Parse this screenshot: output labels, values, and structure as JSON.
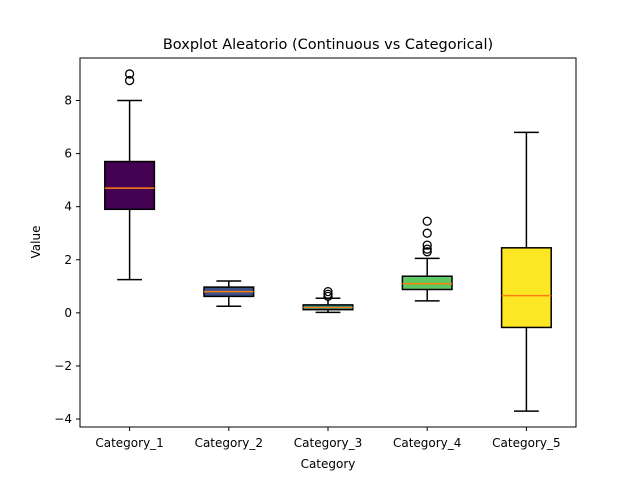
{
  "chart_data": {
    "type": "boxplot",
    "title": "Boxplot Aleatorio (Continuous vs Categorical)",
    "xlabel": "Category",
    "ylabel": "Value",
    "ylim": [
      -4.3,
      9.6
    ],
    "yticks": [
      -4,
      -2,
      0,
      2,
      4,
      6,
      8
    ],
    "ytick_labels": [
      "−4",
      "−2",
      "0",
      "2",
      "4",
      "6",
      "8"
    ],
    "grid": false,
    "categories": [
      "Category_1",
      "Category_2",
      "Category_3",
      "Category_4",
      "Category_5"
    ],
    "boxes": [
      {
        "category": "Category_1",
        "whisker_low": 1.25,
        "q1": 3.9,
        "median": 4.7,
        "q3": 5.7,
        "whisker_high": 8.0,
        "outliers": [
          8.75,
          9.0
        ],
        "fill": "#440154"
      },
      {
        "category": "Category_2",
        "whisker_low": 0.25,
        "q1": 0.62,
        "median": 0.8,
        "q3": 0.97,
        "whisker_high": 1.2,
        "outliers": [],
        "fill": "#3b528b"
      },
      {
        "category": "Category_3",
        "whisker_low": 0.02,
        "q1": 0.12,
        "median": 0.2,
        "q3": 0.3,
        "whisker_high": 0.55,
        "outliers": [
          0.62,
          0.7,
          0.8
        ],
        "fill": "#21918c"
      },
      {
        "category": "Category_4",
        "whisker_low": 0.45,
        "q1": 0.88,
        "median": 1.1,
        "q3": 1.38,
        "whisker_high": 2.05,
        "outliers": [
          2.3,
          2.4,
          2.55,
          3.0,
          3.45
        ],
        "fill": "#5ec962"
      },
      {
        "category": "Category_5",
        "whisker_low": -3.7,
        "q1": -0.55,
        "median": 0.65,
        "q3": 2.45,
        "whisker_high": 6.8,
        "outliers": [],
        "fill": "#fde725"
      }
    ],
    "colors": {
      "median_line": "#ff7f0e",
      "box_edge": "#000000",
      "whisker": "#000000",
      "outlier_edge": "#000000",
      "axes": "#000000"
    }
  }
}
